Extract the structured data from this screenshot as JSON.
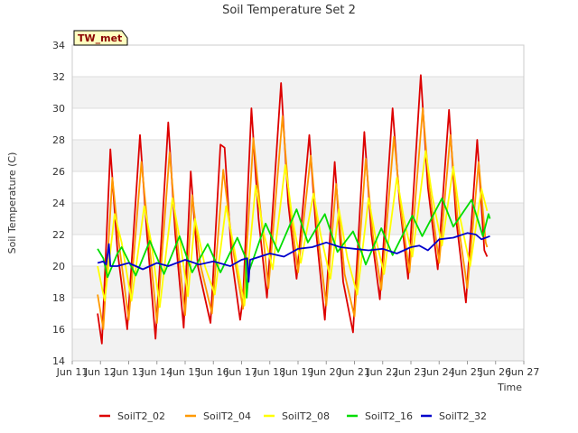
{
  "chart_data": {
    "type": "line",
    "title": "Soil Temperature Set 2",
    "xlabel": "Time",
    "ylabel": "Soil Temperature (C)",
    "badge": "TW_met",
    "ylim": [
      14,
      34
    ],
    "yticks": [
      14,
      16,
      18,
      20,
      22,
      24,
      26,
      28,
      30,
      32,
      34
    ],
    "xlim": [
      11.0,
      27.0
    ],
    "xticks": [
      {
        "v": 11,
        "label": "Jun 11"
      },
      {
        "v": 12,
        "label": "Jun 12"
      },
      {
        "v": 13,
        "label": "Jun 13"
      },
      {
        "v": 14,
        "label": "Jun 14"
      },
      {
        "v": 15,
        "label": "Jun 15"
      },
      {
        "v": 16,
        "label": "Jun 16"
      },
      {
        "v": 17,
        "label": "Jun 17"
      },
      {
        "v": 18,
        "label": "Jun 18"
      },
      {
        "v": 19,
        "label": "Jun 19"
      },
      {
        "v": 20,
        "label": "Jun 20"
      },
      {
        "v": 21,
        "label": "Jun 21"
      },
      {
        "v": 22,
        "label": "Jun 22"
      },
      {
        "v": 23,
        "label": "Jun 23"
      },
      {
        "v": 24,
        "label": "Jun 24"
      },
      {
        "v": 25,
        "label": "Jun 25"
      },
      {
        "v": 26,
        "label": "Jun 26"
      },
      {
        "v": 27,
        "label": "Jun 27"
      }
    ],
    "x_unit": "day of June",
    "grid": true,
    "legend_position": "bottom",
    "series": [
      {
        "name": "SoilT2_02",
        "color": "#dd0000",
        "points": [
          [
            11.9,
            17.0
          ],
          [
            12.05,
            15.1
          ],
          [
            12.35,
            27.4
          ],
          [
            12.6,
            21.0
          ],
          [
            12.95,
            16.0
          ],
          [
            13.4,
            28.3
          ],
          [
            13.65,
            22.0
          ],
          [
            13.95,
            15.4
          ],
          [
            14.4,
            29.1
          ],
          [
            14.65,
            22.0
          ],
          [
            14.95,
            16.1
          ],
          [
            15.2,
            26.0
          ],
          [
            15.45,
            20.0
          ],
          [
            15.9,
            16.4
          ],
          [
            16.25,
            27.7
          ],
          [
            16.4,
            27.5
          ],
          [
            16.65,
            20.5
          ],
          [
            16.95,
            16.6
          ],
          [
            17.05,
            18.0
          ],
          [
            17.35,
            30.0
          ],
          [
            17.6,
            23.0
          ],
          [
            17.9,
            18.0
          ],
          [
            18.4,
            31.6
          ],
          [
            18.65,
            24.0
          ],
          [
            18.95,
            19.2
          ],
          [
            19.4,
            28.3
          ],
          [
            19.65,
            22.0
          ],
          [
            19.95,
            16.6
          ],
          [
            20.3,
            26.6
          ],
          [
            20.6,
            19.0
          ],
          [
            20.95,
            15.8
          ],
          [
            21.35,
            28.5
          ],
          [
            21.6,
            22.0
          ],
          [
            21.9,
            17.9
          ],
          [
            22.35,
            30.0
          ],
          [
            22.6,
            24.0
          ],
          [
            22.9,
            19.2
          ],
          [
            23.35,
            32.1
          ],
          [
            23.6,
            25.0
          ],
          [
            23.95,
            19.8
          ],
          [
            24.35,
            29.9
          ],
          [
            24.6,
            23.0
          ],
          [
            24.95,
            17.7
          ],
          [
            25.35,
            28.0
          ],
          [
            25.6,
            21.0
          ],
          [
            25.7,
            20.6
          ]
        ]
      },
      {
        "name": "SoilT2_04",
        "color": "#ff9900",
        "points": [
          [
            11.9,
            18.2
          ],
          [
            12.1,
            16.0
          ],
          [
            12.42,
            25.6
          ],
          [
            12.65,
            21.5
          ],
          [
            13.0,
            16.6
          ],
          [
            13.45,
            26.6
          ],
          [
            13.7,
            22.0
          ],
          [
            14.0,
            16.4
          ],
          [
            14.45,
            27.2
          ],
          [
            14.7,
            22.0
          ],
          [
            15.0,
            16.9
          ],
          [
            15.25,
            24.5
          ],
          [
            15.55,
            20.0
          ],
          [
            15.95,
            17.0
          ],
          [
            16.35,
            26.1
          ],
          [
            16.7,
            21.0
          ],
          [
            17.05,
            17.3
          ],
          [
            17.42,
            28.1
          ],
          [
            17.7,
            23.0
          ],
          [
            17.95,
            18.6
          ],
          [
            18.45,
            29.5
          ],
          [
            18.7,
            24.0
          ],
          [
            19.0,
            19.6
          ],
          [
            19.45,
            27.0
          ],
          [
            19.7,
            22.0
          ],
          [
            20.0,
            17.5
          ],
          [
            20.35,
            25.2
          ],
          [
            20.65,
            19.5
          ],
          [
            21.0,
            16.8
          ],
          [
            21.4,
            26.8
          ],
          [
            21.65,
            22.0
          ],
          [
            21.95,
            18.5
          ],
          [
            22.4,
            28.2
          ],
          [
            22.65,
            23.5
          ],
          [
            22.95,
            19.6
          ],
          [
            23.42,
            30.0
          ],
          [
            23.65,
            25.0
          ],
          [
            24.0,
            20.2
          ],
          [
            24.4,
            28.3
          ],
          [
            24.65,
            23.0
          ],
          [
            25.0,
            18.6
          ],
          [
            25.4,
            26.6
          ],
          [
            25.65,
            21.5
          ],
          [
            25.7,
            21.2
          ]
        ]
      },
      {
        "name": "SoilT2_08",
        "color": "#ffff00",
        "points": [
          [
            11.9,
            20.0
          ],
          [
            12.15,
            17.8
          ],
          [
            12.5,
            23.3
          ],
          [
            12.75,
            21.5
          ],
          [
            13.1,
            17.8
          ],
          [
            13.55,
            23.8
          ],
          [
            13.8,
            21.5
          ],
          [
            14.1,
            17.4
          ],
          [
            14.55,
            24.3
          ],
          [
            14.8,
            21.8
          ],
          [
            15.1,
            18.1
          ],
          [
            15.35,
            23.0
          ],
          [
            15.7,
            20.0
          ],
          [
            16.05,
            18.2
          ],
          [
            16.45,
            23.8
          ],
          [
            16.75,
            21.0
          ],
          [
            17.1,
            17.5
          ],
          [
            17.5,
            25.1
          ],
          [
            17.8,
            22.0
          ],
          [
            18.1,
            19.8
          ],
          [
            18.55,
            26.4
          ],
          [
            18.8,
            23.0
          ],
          [
            19.1,
            20.2
          ],
          [
            19.55,
            24.6
          ],
          [
            19.8,
            22.0
          ],
          [
            20.15,
            19.2
          ],
          [
            20.45,
            23.6
          ],
          [
            20.75,
            20.5
          ],
          [
            21.1,
            18.2
          ],
          [
            21.5,
            24.3
          ],
          [
            21.75,
            21.8
          ],
          [
            22.05,
            19.5
          ],
          [
            22.5,
            25.6
          ],
          [
            22.75,
            23.0
          ],
          [
            23.05,
            20.6
          ],
          [
            23.52,
            27.3
          ],
          [
            23.75,
            24.5
          ],
          [
            24.1,
            21.3
          ],
          [
            24.5,
            26.3
          ],
          [
            24.75,
            23.0
          ],
          [
            25.1,
            20.0
          ],
          [
            25.5,
            24.9
          ],
          [
            25.7,
            23.5
          ]
        ]
      },
      {
        "name": "SoilT2_16",
        "color": "#00dd00",
        "points": [
          [
            11.9,
            21.1
          ],
          [
            12.1,
            20.5
          ],
          [
            12.25,
            19.3
          ],
          [
            12.6,
            20.8
          ],
          [
            12.75,
            21.2
          ],
          [
            13.25,
            19.4
          ],
          [
            13.75,
            21.6
          ],
          [
            14.25,
            19.5
          ],
          [
            14.8,
            21.9
          ],
          [
            15.25,
            19.6
          ],
          [
            15.8,
            21.4
          ],
          [
            16.25,
            19.6
          ],
          [
            16.85,
            21.8
          ],
          [
            17.15,
            20.5
          ],
          [
            17.18,
            18.0
          ],
          [
            17.25,
            19.6
          ],
          [
            17.85,
            22.7
          ],
          [
            18.3,
            20.9
          ],
          [
            18.95,
            23.6
          ],
          [
            19.35,
            21.5
          ],
          [
            19.95,
            23.3
          ],
          [
            20.4,
            20.9
          ],
          [
            20.95,
            22.2
          ],
          [
            21.25,
            20.9
          ],
          [
            21.4,
            20.1
          ],
          [
            21.95,
            22.4
          ],
          [
            22.35,
            20.7
          ],
          [
            23.05,
            23.2
          ],
          [
            23.4,
            21.9
          ],
          [
            24.1,
            24.3
          ],
          [
            24.5,
            22.5
          ],
          [
            25.15,
            24.2
          ],
          [
            25.55,
            21.9
          ],
          [
            25.75,
            23.3
          ],
          [
            25.8,
            23.0
          ]
        ]
      },
      {
        "name": "SoilT2_32",
        "color": "#0000cc",
        "points": [
          [
            11.9,
            20.2
          ],
          [
            12.1,
            20.3
          ],
          [
            12.2,
            20.1
          ],
          [
            12.3,
            21.4
          ],
          [
            12.35,
            20.0
          ],
          [
            12.6,
            20.0
          ],
          [
            13.0,
            20.2
          ],
          [
            13.5,
            19.8
          ],
          [
            14.0,
            20.2
          ],
          [
            14.4,
            20.0
          ],
          [
            15.0,
            20.4
          ],
          [
            15.5,
            20.1
          ],
          [
            16.0,
            20.3
          ],
          [
            16.6,
            20.0
          ],
          [
            17.0,
            20.4
          ],
          [
            17.2,
            20.5
          ],
          [
            17.25,
            19.0
          ],
          [
            17.3,
            20.4
          ],
          [
            18.0,
            20.8
          ],
          [
            18.5,
            20.6
          ],
          [
            19.0,
            21.1
          ],
          [
            19.5,
            21.2
          ],
          [
            20.0,
            21.5
          ],
          [
            20.5,
            21.2
          ],
          [
            21.0,
            21.1
          ],
          [
            21.5,
            21.0
          ],
          [
            22.0,
            21.1
          ],
          [
            22.5,
            20.8
          ],
          [
            23.0,
            21.2
          ],
          [
            23.3,
            21.3
          ],
          [
            23.6,
            21.0
          ],
          [
            24.0,
            21.7
          ],
          [
            24.5,
            21.8
          ],
          [
            25.0,
            22.1
          ],
          [
            25.3,
            22.0
          ],
          [
            25.5,
            21.7
          ],
          [
            25.8,
            21.9
          ]
        ]
      }
    ]
  }
}
